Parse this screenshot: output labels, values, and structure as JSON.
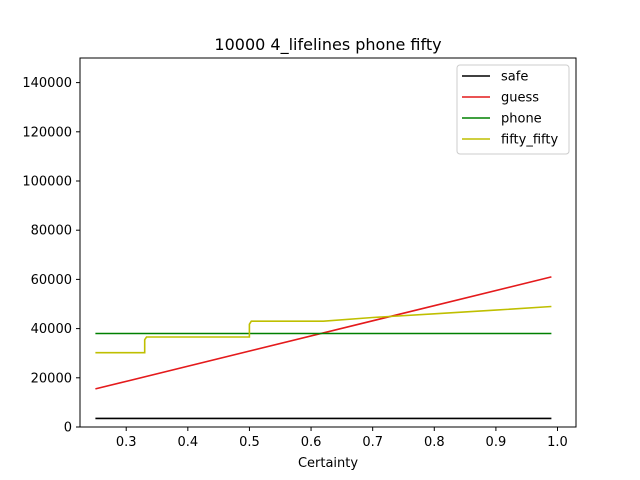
{
  "chart_data": {
    "type": "line",
    "title": "10000 4_lifelines phone fifty",
    "xlabel": "Certainty",
    "ylabel": "",
    "xlim": [
      0.225,
      1.03
    ],
    "ylim": [
      0,
      150000
    ],
    "xticks": [
      0.3,
      0.4,
      0.5,
      0.6,
      0.7,
      0.8,
      0.9,
      1.0
    ],
    "xtick_labels": [
      "0.3",
      "0.4",
      "0.5",
      "0.6",
      "0.7",
      "0.8",
      "0.9",
      "1.0"
    ],
    "yticks": [
      0,
      20000,
      40000,
      60000,
      80000,
      100000,
      120000,
      140000
    ],
    "ytick_labels": [
      "0",
      "20000",
      "40000",
      "60000",
      "80000",
      "100000",
      "120000",
      "140000"
    ],
    "grid": false,
    "legend_position": "top-right",
    "series": [
      {
        "name": "safe",
        "color": "#000000",
        "x": [
          0.25,
          0.99
        ],
        "y": [
          3500,
          3500
        ]
      },
      {
        "name": "guess",
        "color": "#e41a1c",
        "x": [
          0.25,
          0.99
        ],
        "y": [
          15500,
          61000
        ]
      },
      {
        "name": "phone",
        "color": "#008000",
        "x": [
          0.25,
          0.99
        ],
        "y": [
          38000,
          38000
        ]
      },
      {
        "name": "fifty_fifty",
        "color": "#bfbf00",
        "x": [
          0.25,
          0.33,
          0.33,
          0.333,
          0.5,
          0.5,
          0.503,
          0.62,
          0.7,
          0.8,
          0.9,
          0.99
        ],
        "y": [
          30200,
          30200,
          35500,
          36600,
          36600,
          41800,
          43000,
          43000,
          44500,
          46000,
          47500,
          49000
        ]
      }
    ]
  }
}
